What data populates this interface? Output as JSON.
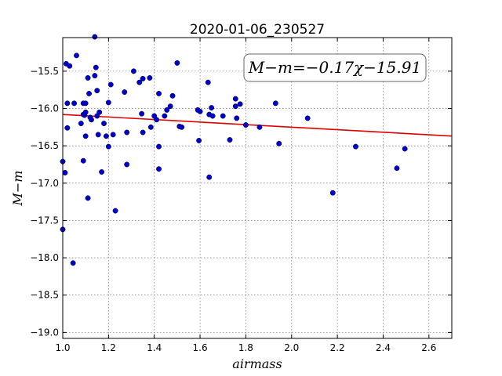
{
  "chart_data": {
    "type": "scatter",
    "title": "2020-01-06_230527",
    "xlabel": "airmass",
    "ylabel": "M−m",
    "xlim": [
      1.0,
      2.7
    ],
    "ylim": [
      -15.05,
      -19.08
    ],
    "y_inverted": true,
    "grid": true,
    "x_ticks": [
      1.0,
      1.2,
      1.4,
      1.6,
      1.8,
      2.0,
      2.2,
      2.4,
      2.6
    ],
    "y_ticks": [
      -15.5,
      -16.0,
      -16.5,
      -17.0,
      -17.5,
      -18.0,
      -18.5,
      -19.0
    ],
    "x_tick_labels": [
      "1.0",
      "1.2",
      "1.4",
      "1.6",
      "1.8",
      "2.0",
      "2.2",
      "2.4",
      "2.6"
    ],
    "y_tick_labels": [
      "−15.5",
      "−16.0",
      "−16.5",
      "−17.0",
      "−17.5",
      "−18.0",
      "−18.5",
      "−19.0"
    ],
    "fit": {
      "slope": -0.17,
      "intercept": -15.91
    },
    "annotation": "M−m=−0.17χ−15.91",
    "colors": {
      "points": "#0000cc",
      "fit_line": "#dd0000"
    },
    "points": [
      [
        1.0,
        -16.71
      ],
      [
        1.0,
        -17.62
      ],
      [
        1.01,
        -16.86
      ],
      [
        1.015,
        -15.4
      ],
      [
        1.02,
        -16.26
      ],
      [
        1.03,
        -15.43
      ],
      [
        1.02,
        -15.93
      ],
      [
        1.05,
        -15.93
      ],
      [
        1.06,
        -15.29
      ],
      [
        1.045,
        -18.07
      ],
      [
        1.08,
        -16.2
      ],
      [
        1.09,
        -15.93
      ],
      [
        1.09,
        -16.08
      ],
      [
        1.095,
        -16.09
      ],
      [
        1.09,
        -16.7
      ],
      [
        1.1,
        -15.93
      ],
      [
        1.1,
        -16.05
      ],
      [
        1.1,
        -16.37
      ],
      [
        1.11,
        -15.59
      ],
      [
        1.115,
        -15.8
      ],
      [
        1.12,
        -16.12
      ],
      [
        1.125,
        -16.15
      ],
      [
        1.11,
        -17.2
      ],
      [
        1.14,
        -15.04
      ],
      [
        1.145,
        -15.45
      ],
      [
        1.14,
        -15.56
      ],
      [
        1.15,
        -15.76
      ],
      [
        1.15,
        -16.1
      ],
      [
        1.155,
        -16.35
      ],
      [
        1.16,
        -16.05
      ],
      [
        1.17,
        -16.85
      ],
      [
        1.18,
        -16.2
      ],
      [
        1.19,
        -16.37
      ],
      [
        1.2,
        -15.92
      ],
      [
        1.21,
        -15.68
      ],
      [
        1.2,
        -16.51
      ],
      [
        1.22,
        -16.35
      ],
      [
        1.23,
        -17.37
      ],
      [
        1.27,
        -15.78
      ],
      [
        1.28,
        -16.32
      ],
      [
        1.28,
        -16.75
      ],
      [
        1.31,
        -15.5
      ],
      [
        1.335,
        -15.65
      ],
      [
        1.345,
        -16.07
      ],
      [
        1.35,
        -15.6
      ],
      [
        1.35,
        -16.32
      ],
      [
        1.38,
        -15.59
      ],
      [
        1.385,
        -16.25
      ],
      [
        1.4,
        -16.1
      ],
      [
        1.41,
        -16.15
      ],
      [
        1.42,
        -15.8
      ],
      [
        1.42,
        -16.51
      ],
      [
        1.42,
        -16.81
      ],
      [
        1.445,
        -16.1
      ],
      [
        1.455,
        -16.02
      ],
      [
        1.47,
        -15.97
      ],
      [
        1.48,
        -15.83
      ],
      [
        1.5,
        -15.39
      ],
      [
        1.51,
        -16.24
      ],
      [
        1.52,
        -16.25
      ],
      [
        1.59,
        -16.02
      ],
      [
        1.595,
        -16.43
      ],
      [
        1.6,
        -16.04
      ],
      [
        1.635,
        -15.65
      ],
      [
        1.64,
        -16.08
      ],
      [
        1.64,
        -16.92
      ],
      [
        1.65,
        -15.99
      ],
      [
        1.655,
        -16.1
      ],
      [
        1.7,
        -16.1
      ],
      [
        1.73,
        -16.42
      ],
      [
        1.755,
        -15.87
      ],
      [
        1.755,
        -15.97
      ],
      [
        1.76,
        -16.13
      ],
      [
        1.775,
        -15.94
      ],
      [
        1.8,
        -16.22
      ],
      [
        1.86,
        -16.25
      ],
      [
        1.93,
        -15.93
      ],
      [
        1.945,
        -16.47
      ],
      [
        2.07,
        -16.13
      ],
      [
        2.18,
        -17.13
      ],
      [
        2.28,
        -16.51
      ],
      [
        2.46,
        -16.8
      ],
      [
        2.495,
        -16.54
      ]
    ]
  }
}
